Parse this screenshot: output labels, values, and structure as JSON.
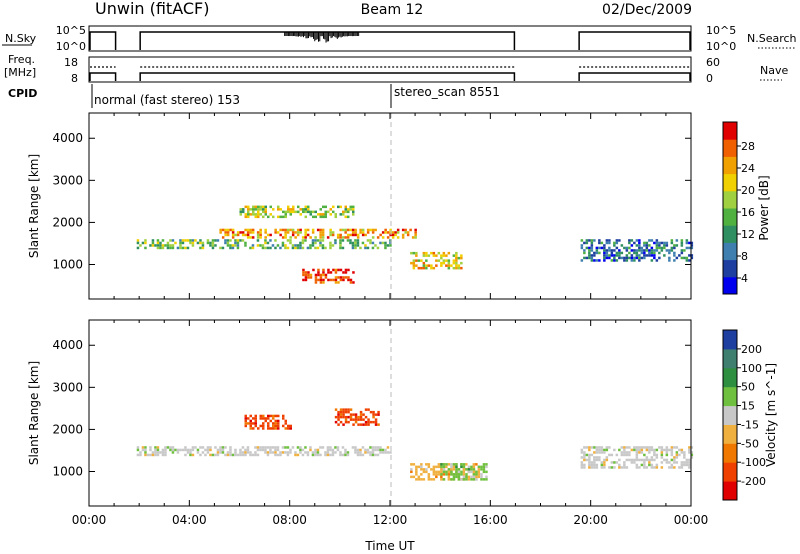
{
  "header": {
    "station": "Unwin (fitACF)",
    "beam": "Beam 12",
    "date": "02/Dec/2009"
  },
  "meta_panels": {
    "nsky": {
      "label": "N.Sky",
      "right_label": "N.Search",
      "left_ticks": [
        "10^5",
        "10^0"
      ],
      "right_ticks": [
        "10^5",
        "10^0"
      ]
    },
    "freq": {
      "label_line1": "Freq.",
      "label_line2": "[MHz]",
      "right_label": "Nave",
      "left_ticks": [
        "18",
        "8"
      ],
      "right_ticks": [
        "60",
        "0"
      ]
    },
    "cpid": {
      "label": "CPID",
      "modes": [
        {
          "name": "normal (fast stereo) 153",
          "start_hour": 0
        },
        {
          "name": "stereo_scan 8551",
          "start_hour": 12
        }
      ]
    }
  },
  "chart_data": [
    {
      "type": "heatmap",
      "name": "power",
      "xlabel": "",
      "ylabel": "Slant Range [km]",
      "xlim": [
        0,
        24
      ],
      "ylim": [
        180,
        4600
      ],
      "yticks": [
        "1000",
        "2000",
        "3000",
        "4000"
      ],
      "colorbar": {
        "label": "Power [dB]",
        "ticks": [
          "28",
          "24",
          "20",
          "16",
          "12",
          "8",
          "4"
        ],
        "colors": [
          "#0000ee",
          "#1e3fa0",
          "#3f7fb0",
          "#2f8f60",
          "#50b040",
          "#a0d040",
          "#f0d000",
          "#f0a000",
          "#f06000",
          "#e00000"
        ]
      },
      "data_gaps_hours": [
        [
          1.1,
          2.0
        ],
        [
          17.0,
          19.5
        ]
      ],
      "regions": [
        {
          "t": [
            1.9,
            12.0
          ],
          "r": [
            1400,
            1600
          ],
          "value": 12
        },
        {
          "t": [
            5.2,
            13.0
          ],
          "r": [
            1650,
            1850
          ],
          "value": 20
        },
        {
          "t": [
            6.0,
            10.5
          ],
          "r": [
            2150,
            2400
          ],
          "value": 16
        },
        {
          "t": [
            8.5,
            10.5
          ],
          "r": [
            600,
            900
          ],
          "value": 26
        },
        {
          "t": [
            12.8,
            14.8
          ],
          "r": [
            900,
            1300
          ],
          "value": 18
        },
        {
          "t": [
            19.6,
            24.0
          ],
          "r": [
            1100,
            1600
          ],
          "value": 6
        }
      ]
    },
    {
      "type": "heatmap",
      "name": "velocity",
      "xlabel": "Time UT",
      "ylabel": "Slant Range [km]",
      "xlim": [
        0,
        24
      ],
      "ylim": [
        180,
        4600
      ],
      "xticks": [
        "00:00",
        "04:00",
        "08:00",
        "12:00",
        "16:00",
        "20:00",
        "00:00"
      ],
      "yticks": [
        "1000",
        "2000",
        "3000",
        "4000"
      ],
      "colorbar": {
        "label": "Velocity [m s^-1]",
        "ticks": [
          "200",
          "100",
          "50",
          "15",
          "-15",
          "-50",
          "-100",
          "-200"
        ],
        "colors": [
          "#1e3fa0",
          "#3f7f70",
          "#2f8f40",
          "#70c040",
          "#c8c8c8",
          "#f0b040",
          "#f07800",
          "#f04000",
          "#e00000"
        ]
      },
      "data_gaps_hours": [
        [
          1.1,
          2.0
        ],
        [
          17.0,
          19.5
        ]
      ],
      "regions": [
        {
          "t": [
            1.9,
            12.0
          ],
          "r": [
            1400,
            1600
          ],
          "value": 0
        },
        {
          "t": [
            6.2,
            8.0
          ],
          "r": [
            2050,
            2350
          ],
          "value": -200
        },
        {
          "t": [
            9.8,
            11.5
          ],
          "r": [
            2100,
            2500
          ],
          "value": -200
        },
        {
          "t": [
            12.8,
            15.5
          ],
          "r": [
            800,
            1200
          ],
          "value": -40
        },
        {
          "t": [
            14.0,
            15.8
          ],
          "r": [
            800,
            1200
          ],
          "value": 40
        },
        {
          "t": [
            19.6,
            24.0
          ],
          "r": [
            1100,
            1600
          ],
          "value": 0
        }
      ]
    }
  ]
}
